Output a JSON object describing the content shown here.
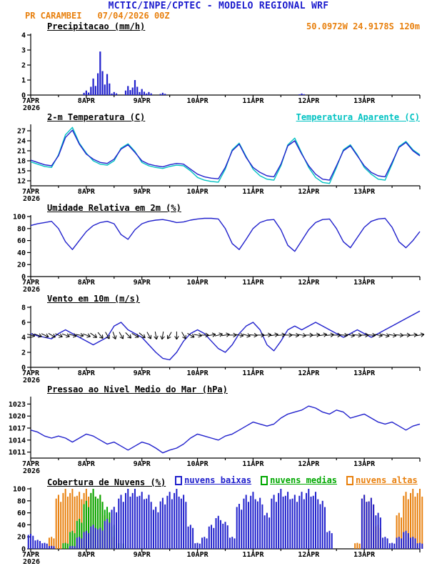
{
  "header": {
    "title": "MCTIC/INPE/CPTEC - MODELO REGIONAL WRF",
    "station": "PR CARAMBEI",
    "run": "07/04/2026 00Z",
    "coords": "50.0972W 24.9178S 120m"
  },
  "colors": {
    "header_blue": "#1a1acd",
    "orange": "#e8800e",
    "line_blue": "#2020cc",
    "cyan": "#00c2c2",
    "green": "#00a800",
    "black": "#000000"
  },
  "x_axis": {
    "step_hours": 3,
    "total_hours": 168,
    "tick_labels": [
      "7APR",
      "8APR",
      "9APR",
      "10APR",
      "11APR",
      "12APR",
      "13APR"
    ],
    "year_label": "2026"
  },
  "chart_data": [
    {
      "type": "bar",
      "title": "Precipitacao (mm/h)",
      "ylabel": "mm/h",
      "ylim": [
        0,
        4
      ],
      "yticks": [
        0,
        1,
        2,
        3,
        4
      ],
      "series": [
        {
          "name": "precipitacao",
          "color": "#2020cc",
          "values": [
            0,
            0,
            0,
            0,
            0,
            0,
            0,
            0,
            0.3,
            1.1,
            2.9,
            1.4,
            0.2,
            0,
            0.6,
            1.0,
            0.4,
            0.2,
            0,
            0.15,
            0,
            0,
            0,
            0,
            0,
            0,
            0,
            0,
            0,
            0,
            0,
            0,
            0,
            0,
            0,
            0,
            0,
            0,
            0,
            0.1,
            0,
            0,
            0,
            0,
            0,
            0,
            0,
            0,
            0,
            0,
            0,
            0,
            0,
            0,
            0,
            0,
            0
          ]
        }
      ]
    },
    {
      "type": "line",
      "title": "2-m Temperatura (C)",
      "ylabel": "C",
      "ylim": [
        10.5,
        28.5
      ],
      "yticks": [
        12,
        15,
        18,
        21,
        24,
        27
      ],
      "series": [
        {
          "name": "2-m Temperatura (C)",
          "color": "#2020cc",
          "values": [
            18.2,
            17.5,
            16.8,
            16.5,
            19.5,
            25,
            27.2,
            23,
            20,
            18.5,
            17.5,
            17.2,
            18.5,
            21.5,
            22.8,
            20.5,
            18,
            17,
            16.5,
            16.2,
            16.8,
            17.2,
            17,
            15.5,
            14,
            13.2,
            12.8,
            12.6,
            16,
            21,
            23,
            19,
            16,
            14.5,
            13.5,
            13.2,
            17,
            22.5,
            24,
            20,
            16.5,
            14,
            12.5,
            12.2,
            16.5,
            21,
            22.5,
            19.5,
            16.5,
            14.5,
            13.5,
            13.2,
            17.5,
            22,
            23.5,
            21,
            19.5
          ]
        },
        {
          "name": "Temperatura Aparente (C)",
          "color": "#00c2c2",
          "values": [
            17.7,
            17,
            16.3,
            16,
            19.8,
            25.8,
            28,
            23.3,
            20.3,
            18,
            17,
            16.7,
            18,
            21.8,
            23.1,
            20.8,
            17.5,
            16.5,
            16,
            15.7,
            16.3,
            16.7,
            16.5,
            15,
            13,
            12.2,
            11.8,
            11.6,
            15.5,
            21.3,
            23.3,
            19.3,
            15.5,
            13.5,
            12.5,
            12.2,
            16.5,
            22.8,
            24.8,
            20.3,
            16,
            13,
            11.5,
            11.2,
            16,
            21.3,
            22.8,
            19.8,
            16,
            14,
            12.5,
            12.2,
            17,
            22.3,
            23.8,
            21.3,
            19.8
          ]
        }
      ]
    },
    {
      "type": "line",
      "title": "Umidade Relativa em 2m (%)",
      "ylabel": "%",
      "ylim": [
        0,
        100
      ],
      "yticks": [
        0,
        20,
        40,
        60,
        80,
        100
      ],
      "series": [
        {
          "name": "umidade relativa",
          "color": "#2020cc",
          "values": [
            85,
            88,
            90,
            92,
            80,
            58,
            45,
            60,
            75,
            85,
            90,
            92,
            88,
            70,
            62,
            78,
            88,
            92,
            94,
            95,
            93,
            90,
            91,
            94,
            96,
            97,
            97,
            96,
            80,
            55,
            45,
            62,
            80,
            90,
            94,
            95,
            78,
            52,
            42,
            60,
            78,
            90,
            95,
            96,
            80,
            58,
            48,
            65,
            82,
            92,
            96,
            97,
            82,
            58,
            48,
            60,
            75
          ]
        }
      ]
    },
    {
      "type": "wind",
      "title": "Vento em 10m (m/s)",
      "ylabel": "m/s",
      "ylim": [
        0,
        8
      ],
      "yticks": [
        0,
        2,
        4,
        6,
        8
      ],
      "barb_y": 4.3,
      "barb_dirs": [
        15,
        20,
        25,
        30,
        25,
        20,
        15,
        10,
        20,
        35,
        50,
        60,
        70,
        60,
        45,
        30,
        40,
        60,
        80,
        100,
        120,
        90,
        60,
        30,
        10,
        0,
        -10,
        -15,
        -10,
        0,
        10,
        15,
        5,
        0,
        -5,
        -10,
        -5,
        0,
        5,
        10,
        0,
        -5,
        -10,
        -5,
        0,
        5,
        10,
        5,
        0,
        5,
        10,
        15,
        10,
        5,
        0,
        -5,
        -10
      ],
      "series": [
        {
          "name": "velocidade do vento",
          "color": "#2020cc",
          "values": [
            4.5,
            4.2,
            4.0,
            3.8,
            4.5,
            5.0,
            4.5,
            4.0,
            3.5,
            3.0,
            3.5,
            4.0,
            5.5,
            6.0,
            5.0,
            4.5,
            4.0,
            3.0,
            2.0,
            1.2,
            1.0,
            2.0,
            3.5,
            4.5,
            5.0,
            4.5,
            3.5,
            2.5,
            2.0,
            3.0,
            4.5,
            5.5,
            6.0,
            5.0,
            3.0,
            2.2,
            3.5,
            5.0,
            5.5,
            5.0,
            5.5,
            6.0,
            5.5,
            5.0,
            4.5,
            4.0,
            4.5,
            5.0,
            4.5,
            4.0,
            4.5,
            5.0,
            5.5,
            6.0,
            6.5,
            7.0,
            7.5
          ]
        }
      ]
    },
    {
      "type": "line",
      "title": "Pressao ao Nivel Medio do Mar (hPa)",
      "ylabel": "hPa",
      "ylim": [
        1009.5,
        1024.5
      ],
      "yticks": [
        1011,
        1014,
        1017,
        1020,
        1023
      ],
      "series": [
        {
          "name": "pressao ao nivel medio do mar",
          "color": "#2020cc",
          "values": [
            1016.5,
            1016,
            1015,
            1014.5,
            1015,
            1014.5,
            1013.5,
            1014.5,
            1015.5,
            1015,
            1014,
            1013,
            1013.5,
            1012.5,
            1011.5,
            1012.5,
            1013.5,
            1013,
            1012,
            1010.8,
            1011.5,
            1012,
            1013,
            1014.5,
            1015.5,
            1015,
            1014.5,
            1014,
            1015,
            1015.5,
            1016.5,
            1017.5,
            1018.5,
            1018,
            1017.5,
            1018,
            1019.5,
            1020.5,
            1021,
            1021.5,
            1022.5,
            1022,
            1021,
            1020.5,
            1021.5,
            1021,
            1019.5,
            1020,
            1020.5,
            1019.5,
            1018.5,
            1018,
            1018.5,
            1017.5,
            1016.5,
            1017.5,
            1018
          ]
        }
      ]
    },
    {
      "type": "bar-multi",
      "title": "Cobertura de Nuvens (%)",
      "ylabel": "%",
      "ylim": [
        0,
        100
      ],
      "yticks": [
        0,
        20,
        40,
        60,
        80,
        100
      ],
      "series": [
        {
          "name": "nuvens baixas",
          "color": "#2020cc",
          "values": [
            25,
            15,
            10,
            5,
            0,
            0,
            5,
            20,
            30,
            40,
            35,
            50,
            70,
            90,
            100,
            100,
            95,
            90,
            70,
            85,
            95,
            100,
            90,
            40,
            10,
            20,
            40,
            55,
            45,
            20,
            75,
            90,
            95,
            85,
            60,
            90,
            100,
            95,
            90,
            95,
            100,
            95,
            80,
            30,
            0,
            0,
            0,
            0,
            90,
            85,
            60,
            20,
            10,
            20,
            30,
            20,
            10
          ]
        },
        {
          "name": "nuvens medias",
          "color": "#00a800",
          "values": [
            0,
            0,
            0,
            0,
            0,
            10,
            30,
            50,
            80,
            100,
            90,
            70,
            40,
            10,
            0,
            0,
            0,
            0,
            0,
            0,
            0,
            0,
            0,
            0,
            0,
            0,
            0,
            0,
            0,
            0,
            0,
            0,
            0,
            0,
            0,
            0,
            0,
            0,
            0,
            0,
            0,
            0,
            0,
            0,
            0,
            0,
            0,
            0,
            0,
            0,
            0,
            0,
            0,
            0,
            0,
            0,
            0
          ]
        },
        {
          "name": "nuvens altas",
          "color": "#e8800e",
          "values": [
            0,
            0,
            0,
            20,
            90,
            100,
            100,
            95,
            100,
            100,
            90,
            60,
            20,
            0,
            0,
            0,
            0,
            0,
            0,
            0,
            0,
            0,
            0,
            0,
            0,
            0,
            0,
            0,
            0,
            0,
            0,
            0,
            0,
            0,
            0,
            0,
            0,
            0,
            0,
            0,
            0,
            0,
            0,
            0,
            0,
            0,
            0,
            10,
            90,
            85,
            40,
            0,
            0,
            60,
            95,
            100,
            100
          ]
        }
      ]
    }
  ]
}
